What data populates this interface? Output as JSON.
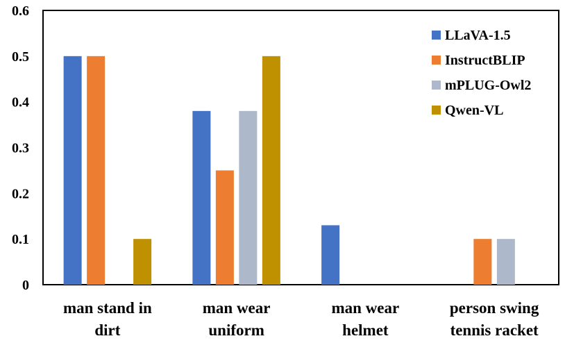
{
  "chart_data": {
    "type": "bar",
    "categories": [
      [
        "man stand in",
        "dirt"
      ],
      [
        "man wear",
        "uniform"
      ],
      [
        "man wear",
        "helmet"
      ],
      [
        "person swing",
        "tennis racket"
      ]
    ],
    "series": [
      {
        "name": "LLaVA-1.5",
        "color": "#4472C4",
        "values": [
          0.5,
          0.38,
          0.13,
          0
        ]
      },
      {
        "name": "InstructBLIP",
        "color": "#ED7D31",
        "values": [
          0.5,
          0.25,
          0,
          0.1
        ]
      },
      {
        "name": "mPLUG-Owl2",
        "color": "#ADB9CA",
        "values": [
          0,
          0.38,
          0,
          0.1
        ]
      },
      {
        "name": "Qwen-VL",
        "color": "#BF9000",
        "values": [
          0.1,
          0.5,
          0,
          0
        ]
      }
    ],
    "yticks": [
      "0",
      "0.1",
      "0.2",
      "0.3",
      "0.4",
      "0.5",
      "0.6"
    ],
    "ylim": [
      0,
      0.6
    ],
    "legend_position": "top-right",
    "grid": false
  }
}
